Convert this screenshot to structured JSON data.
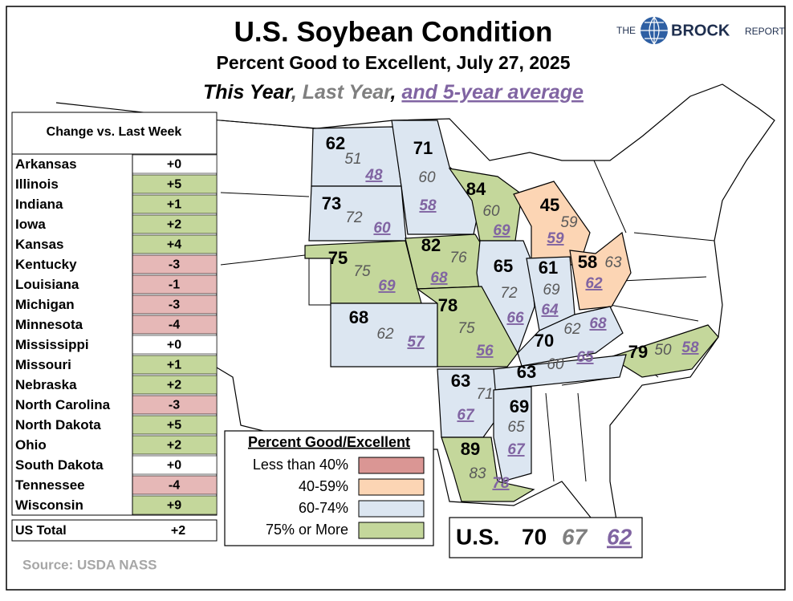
{
  "header": {
    "title": "U.S. Soybean Condition",
    "subtitle": "Percent Good to Excellent, July 27, 2025",
    "line": {
      "this_year": "This Year",
      "sep1": ",",
      "last_year": "Last Year",
      "sep2": ",",
      "avg": "and 5-year average"
    }
  },
  "logo": {
    "the": "THE",
    "brock": "BROCK",
    "report": "REPORT"
  },
  "change_table": {
    "title": "Change vs. Last Week",
    "rows": [
      {
        "state": "Arkansas",
        "change": "+0",
        "color": "#ffffff"
      },
      {
        "state": "Illinois",
        "change": "+5",
        "color": "#c4d79b"
      },
      {
        "state": "Indiana",
        "change": "+1",
        "color": "#c4d79b"
      },
      {
        "state": "Iowa",
        "change": "+2",
        "color": "#c4d79b"
      },
      {
        "state": "Kansas",
        "change": "+4",
        "color": "#c4d79b"
      },
      {
        "state": "Kentucky",
        "change": "-3",
        "color": "#e6b8b7"
      },
      {
        "state": "Louisiana",
        "change": "-1",
        "color": "#e6b8b7"
      },
      {
        "state": "Michigan",
        "change": "-3",
        "color": "#e6b8b7"
      },
      {
        "state": "Minnesota",
        "change": "-4",
        "color": "#e6b8b7"
      },
      {
        "state": "Mississippi",
        "change": "+0",
        "color": "#ffffff"
      },
      {
        "state": "Missouri",
        "change": "+1",
        "color": "#c4d79b"
      },
      {
        "state": "Nebraska",
        "change": "+2",
        "color": "#c4d79b"
      },
      {
        "state": "North Carolina",
        "change": "-3",
        "color": "#e6b8b7"
      },
      {
        "state": "North Dakota",
        "change": "+5",
        "color": "#c4d79b"
      },
      {
        "state": "Ohio",
        "change": "+2",
        "color": "#c4d79b"
      },
      {
        "state": "South Dakota",
        "change": "+0",
        "color": "#ffffff"
      },
      {
        "state": "Tennessee",
        "change": "-4",
        "color": "#e6b8b7"
      },
      {
        "state": "Wisconsin",
        "change": "+9",
        "color": "#c4d79b"
      }
    ],
    "total": {
      "state": "US Total",
      "change": "+2"
    }
  },
  "states": [
    {
      "this_year": 62,
      "last_year": 51,
      "avg": 48,
      "color": "#dce6f1"
    },
    {
      "this_year": 71,
      "last_year": 60,
      "avg": 58,
      "color": "#dce6f1"
    },
    {
      "this_year": 73,
      "last_year": 72,
      "avg": 60,
      "color": "#dce6f1"
    },
    {
      "this_year": 84,
      "last_year": 60,
      "avg": 69,
      "color": "#c4d79b"
    },
    {
      "this_year": 75,
      "last_year": 75,
      "avg": 69,
      "color": "#c4d79b"
    },
    {
      "this_year": 82,
      "last_year": 76,
      "avg": 68,
      "color": "#c4d79b"
    },
    {
      "this_year": 45,
      "last_year": 59,
      "avg": 59,
      "color": "#fcd5b4"
    },
    {
      "this_year": 65,
      "last_year": 72,
      "avg": 66,
      "color": "#dce6f1"
    },
    {
      "this_year": 61,
      "last_year": 69,
      "avg": 64,
      "color": "#dce6f1"
    },
    {
      "this_year": 58,
      "last_year": 63,
      "avg": 62,
      "color": "#fcd5b4"
    },
    {
      "this_year": 68,
      "last_year": 62,
      "avg": 57,
      "color": "#dce6f1"
    },
    {
      "this_year": 78,
      "last_year": 75,
      "avg": 56,
      "color": "#c4d79b"
    },
    {
      "this_year": 70,
      "last_year": 62,
      "avg": 68,
      "color": "#dce6f1"
    },
    {
      "this_year": 79,
      "last_year": 50,
      "avg": 58,
      "color": "#c4d79b"
    },
    {
      "this_year": 63,
      "last_year": 60,
      "avg": 65,
      "color": "#dce6f1"
    },
    {
      "this_year": 63,
      "last_year": 71,
      "avg": 67,
      "color": "#dce6f1"
    },
    {
      "this_year": 69,
      "last_year": 65,
      "avg": 67,
      "color": "#dce6f1"
    },
    {
      "this_year": 89,
      "last_year": 83,
      "avg": 78,
      "color": "#c4d79b"
    }
  ],
  "legend": {
    "title": "Percent Good/Excellent",
    "items": [
      {
        "label": "Less than 40%",
        "color": "#da9694"
      },
      {
        "label": "40-59%",
        "color": "#fcd5b4"
      },
      {
        "label": "60-74%",
        "color": "#dce6f1"
      },
      {
        "label": "75% or More",
        "color": "#c4d79b"
      }
    ]
  },
  "us_total": {
    "label": "U.S.",
    "this_year": 70,
    "last_year": 67,
    "avg": 62
  },
  "source": "Source: USDA NASS"
}
